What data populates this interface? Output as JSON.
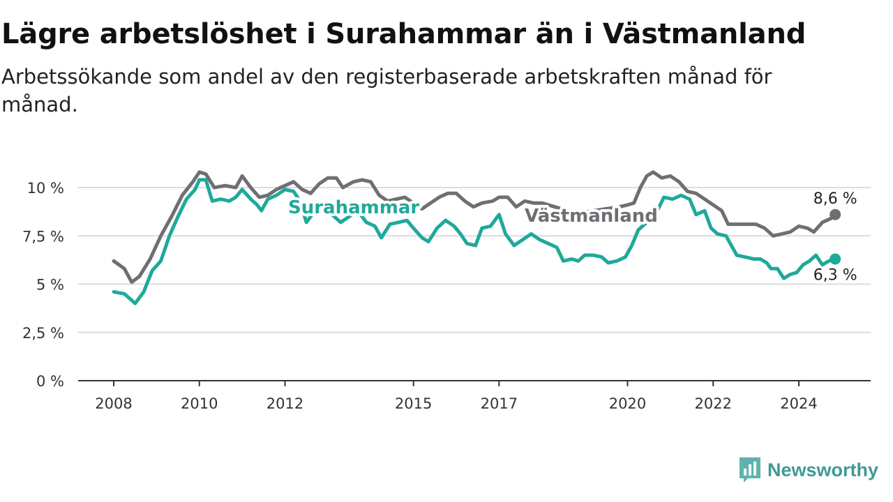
{
  "chart_data": {
    "type": "line",
    "title": "Lägre arbetslöshet i Surahammar än i Västmanland",
    "subtitle": "Arbetssökande som andel av den registerbaserade arbetskraften månad för månad.",
    "ylim": [
      0,
      11
    ],
    "yticks": [
      0,
      2.5,
      5,
      7.5,
      10
    ],
    "ytick_labels": [
      "0 %",
      "2,5 %",
      "5 %",
      "7,5 %",
      "10 %"
    ],
    "xlim": [
      2007.75,
      2025.0
    ],
    "xticks": [
      2008,
      2010,
      2012,
      2015,
      2017,
      2020,
      2022,
      2024
    ],
    "xtick_labels": [
      "2008",
      "2010",
      "2012",
      "2015",
      "2017",
      "2020",
      "2022",
      "2024"
    ],
    "grid": true,
    "series": [
      {
        "name": "Västmanland",
        "color": "#6e6e73",
        "end_label": "8,6 %",
        "points": [
          [
            2008.0,
            6.2
          ],
          [
            2008.25,
            5.8
          ],
          [
            2008.42,
            5.1
          ],
          [
            2008.6,
            5.4
          ],
          [
            2008.85,
            6.3
          ],
          [
            2009.1,
            7.5
          ],
          [
            2009.35,
            8.5
          ],
          [
            2009.6,
            9.6
          ],
          [
            2009.85,
            10.3
          ],
          [
            2010.0,
            10.8
          ],
          [
            2010.15,
            10.7
          ],
          [
            2010.35,
            10.0
          ],
          [
            2010.6,
            10.1
          ],
          [
            2010.85,
            10.0
          ],
          [
            2011.0,
            10.6
          ],
          [
            2011.2,
            10.0
          ],
          [
            2011.4,
            9.5
          ],
          [
            2011.6,
            9.6
          ],
          [
            2011.8,
            9.9
          ],
          [
            2012.0,
            10.1
          ],
          [
            2012.2,
            10.3
          ],
          [
            2012.4,
            9.9
          ],
          [
            2012.6,
            9.7
          ],
          [
            2012.8,
            10.2
          ],
          [
            2013.0,
            10.5
          ],
          [
            2013.2,
            10.5
          ],
          [
            2013.35,
            10.0
          ],
          [
            2013.6,
            10.3
          ],
          [
            2013.8,
            10.4
          ],
          [
            2014.0,
            10.3
          ],
          [
            2014.2,
            9.6
          ],
          [
            2014.4,
            9.3
          ],
          [
            2014.6,
            9.4
          ],
          [
            2014.8,
            9.5
          ],
          [
            2015.0,
            9.2
          ],
          [
            2015.2,
            8.9
          ],
          [
            2015.4,
            9.2
          ],
          [
            2015.6,
            9.5
          ],
          [
            2015.8,
            9.7
          ],
          [
            2016.0,
            9.7
          ],
          [
            2016.2,
            9.3
          ],
          [
            2016.4,
            9.0
          ],
          [
            2016.6,
            9.2
          ],
          [
            2016.85,
            9.3
          ],
          [
            2017.0,
            9.5
          ],
          [
            2017.2,
            9.5
          ],
          [
            2017.4,
            9.0
          ],
          [
            2017.6,
            9.3
          ],
          [
            2017.8,
            9.2
          ],
          [
            2018.0,
            9.2
          ],
          [
            2018.3,
            9.0
          ],
          [
            2018.6,
            8.8
          ],
          [
            2018.9,
            8.7
          ],
          [
            2019.2,
            8.8
          ],
          [
            2019.5,
            8.9
          ],
          [
            2019.8,
            9.0
          ],
          [
            2020.0,
            9.1
          ],
          [
            2020.15,
            9.2
          ],
          [
            2020.3,
            10.0
          ],
          [
            2020.45,
            10.6
          ],
          [
            2020.6,
            10.8
          ],
          [
            2020.8,
            10.5
          ],
          [
            2021.0,
            10.6
          ],
          [
            2021.2,
            10.3
          ],
          [
            2021.4,
            9.8
          ],
          [
            2021.6,
            9.7
          ],
          [
            2021.8,
            9.4
          ],
          [
            2022.0,
            9.1
          ],
          [
            2022.2,
            8.8
          ],
          [
            2022.35,
            8.1
          ],
          [
            2022.6,
            8.1
          ],
          [
            2022.85,
            8.1
          ],
          [
            2023.0,
            8.1
          ],
          [
            2023.2,
            7.9
          ],
          [
            2023.4,
            7.5
          ],
          [
            2023.6,
            7.6
          ],
          [
            2023.8,
            7.7
          ],
          [
            2024.0,
            8.0
          ],
          [
            2024.2,
            7.9
          ],
          [
            2024.35,
            7.7
          ],
          [
            2024.55,
            8.2
          ],
          [
            2024.75,
            8.4
          ],
          [
            2024.85,
            8.6
          ]
        ]
      },
      {
        "name": "Surahammar",
        "color": "#1fa99a",
        "end_label": "6,3 %",
        "points": [
          [
            2008.0,
            4.6
          ],
          [
            2008.25,
            4.5
          ],
          [
            2008.5,
            4.0
          ],
          [
            2008.7,
            4.6
          ],
          [
            2008.9,
            5.7
          ],
          [
            2009.1,
            6.2
          ],
          [
            2009.3,
            7.5
          ],
          [
            2009.5,
            8.5
          ],
          [
            2009.7,
            9.4
          ],
          [
            2009.9,
            9.9
          ],
          [
            2010.0,
            10.4
          ],
          [
            2010.15,
            10.4
          ],
          [
            2010.3,
            9.3
          ],
          [
            2010.5,
            9.4
          ],
          [
            2010.7,
            9.3
          ],
          [
            2010.85,
            9.5
          ],
          [
            2011.0,
            9.9
          ],
          [
            2011.2,
            9.4
          ],
          [
            2011.35,
            9.1
          ],
          [
            2011.45,
            8.8
          ],
          [
            2011.6,
            9.4
          ],
          [
            2011.8,
            9.6
          ],
          [
            2012.0,
            9.9
          ],
          [
            2012.2,
            9.8
          ],
          [
            2012.35,
            9.3
          ],
          [
            2012.5,
            8.2
          ],
          [
            2012.7,
            8.8
          ],
          [
            2012.9,
            9.0
          ],
          [
            2013.1,
            8.6
          ],
          [
            2013.3,
            8.2
          ],
          [
            2013.5,
            8.5
          ],
          [
            2013.7,
            8.8
          ],
          [
            2013.9,
            8.2
          ],
          [
            2014.1,
            8.0
          ],
          [
            2014.25,
            7.4
          ],
          [
            2014.45,
            8.1
          ],
          [
            2014.65,
            8.2
          ],
          [
            2014.85,
            8.3
          ],
          [
            2015.0,
            7.9
          ],
          [
            2015.2,
            7.4
          ],
          [
            2015.35,
            7.2
          ],
          [
            2015.55,
            7.9
          ],
          [
            2015.75,
            8.3
          ],
          [
            2015.95,
            8.0
          ],
          [
            2016.1,
            7.6
          ],
          [
            2016.25,
            7.1
          ],
          [
            2016.45,
            7.0
          ],
          [
            2016.6,
            7.9
          ],
          [
            2016.8,
            8.0
          ],
          [
            2017.0,
            8.6
          ],
          [
            2017.15,
            7.6
          ],
          [
            2017.35,
            7.0
          ],
          [
            2017.55,
            7.3
          ],
          [
            2017.75,
            7.6
          ],
          [
            2017.95,
            7.3
          ],
          [
            2018.15,
            7.1
          ],
          [
            2018.35,
            6.9
          ],
          [
            2018.5,
            6.2
          ],
          [
            2018.7,
            6.3
          ],
          [
            2018.85,
            6.2
          ],
          [
            2019.0,
            6.5
          ],
          [
            2019.2,
            6.5
          ],
          [
            2019.4,
            6.4
          ],
          [
            2019.55,
            6.1
          ],
          [
            2019.75,
            6.2
          ],
          [
            2019.95,
            6.4
          ],
          [
            2020.1,
            7.0
          ],
          [
            2020.25,
            7.8
          ],
          [
            2020.45,
            8.2
          ],
          [
            2020.65,
            8.6
          ],
          [
            2020.85,
            9.5
          ],
          [
            2021.05,
            9.4
          ],
          [
            2021.25,
            9.6
          ],
          [
            2021.45,
            9.4
          ],
          [
            2021.6,
            8.6
          ],
          [
            2021.8,
            8.8
          ],
          [
            2021.95,
            7.9
          ],
          [
            2022.1,
            7.6
          ],
          [
            2022.3,
            7.5
          ],
          [
            2022.45,
            6.9
          ],
          [
            2022.55,
            6.5
          ],
          [
            2022.75,
            6.4
          ],
          [
            2022.95,
            6.3
          ],
          [
            2023.1,
            6.3
          ],
          [
            2023.25,
            6.1
          ],
          [
            2023.35,
            5.8
          ],
          [
            2023.5,
            5.8
          ],
          [
            2023.65,
            5.3
          ],
          [
            2023.8,
            5.5
          ],
          [
            2023.95,
            5.6
          ],
          [
            2024.1,
            6.0
          ],
          [
            2024.25,
            6.2
          ],
          [
            2024.4,
            6.5
          ],
          [
            2024.55,
            6.0
          ],
          [
            2024.7,
            6.2
          ],
          [
            2024.85,
            6.3
          ]
        ]
      }
    ],
    "annotations": [
      "Surahammar",
      "Västmanland"
    ]
  },
  "brand": {
    "name": "Newsworthy",
    "color": "#3f9a94"
  }
}
